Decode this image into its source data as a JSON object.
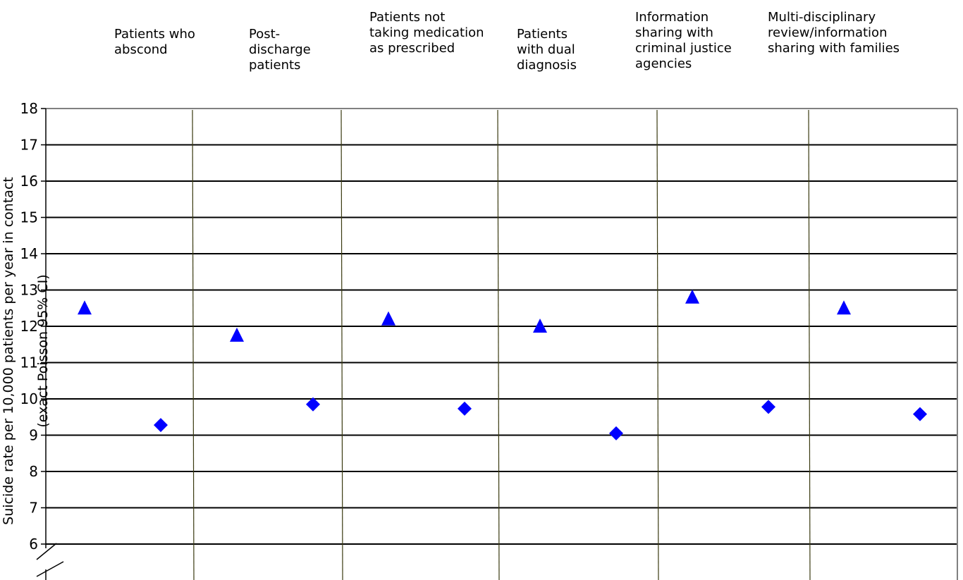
{
  "chart_data": {
    "type": "scatter",
    "categories": [
      "Patients  who abscond",
      "Post-discharge patients",
      "Patients not taking medication as prescribed",
      "Patients with dual diagnosis",
      "Information sharing with criminal justice agencies",
      "Multi-disciplinary review/information sharing with families"
    ],
    "ylabel": "Suicide rate per 10,000 patients per year in contact",
    "ylabel2": "(exact Poisson 95% CI)",
    "ylim": [
      5,
      18
    ],
    "yticks": [
      6,
      7,
      8,
      9,
      10,
      11,
      12,
      13,
      14,
      15,
      16,
      17,
      18
    ],
    "grid": true,
    "axis_break": true,
    "series": [
      {
        "marker": "triangle",
        "color": "#0000ff",
        "values": [
          12.5,
          11.75,
          12.2,
          12.0,
          12.8,
          12.5
        ]
      },
      {
        "marker": "diamond",
        "color": "#0000ff",
        "values": [
          9.28,
          9.85,
          9.73,
          9.05,
          9.78,
          9.58
        ]
      }
    ]
  }
}
